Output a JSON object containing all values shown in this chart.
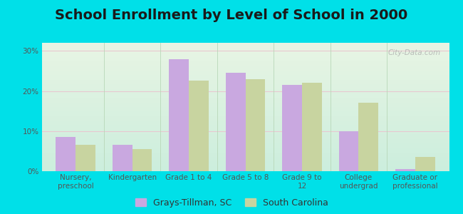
{
  "title": "School Enrollment by Level of School in 2000",
  "categories": [
    "Nursery,\npreschool",
    "Kindergarten",
    "Grade 1 to 4",
    "Grade 5 to 8",
    "Grade 9 to\n12",
    "College\nundergrad",
    "Graduate or\nprofessional"
  ],
  "grays_tillman": [
    8.5,
    6.5,
    28.0,
    24.5,
    21.5,
    10.0,
    0.5
  ],
  "south_carolina": [
    6.5,
    5.5,
    22.5,
    23.0,
    22.0,
    17.0,
    3.5
  ],
  "color_grays": "#c9a8e0",
  "color_sc": "#c8d4a0",
  "legend_labels": [
    "Grays-Tillman, SC",
    "South Carolina"
  ],
  "ylim": [
    0,
    32
  ],
  "yticks": [
    0,
    10,
    20,
    30
  ],
  "ytick_labels": [
    "0%",
    "10%",
    "20%",
    "30%"
  ],
  "bg_outer": "#00e0e8",
  "bg_plot": "#e4f2e4",
  "title_fontsize": 14,
  "tick_fontsize": 7.5,
  "legend_fontsize": 9,
  "grid_color": "#e8c8d0",
  "separator_color": "#b8d8b8"
}
